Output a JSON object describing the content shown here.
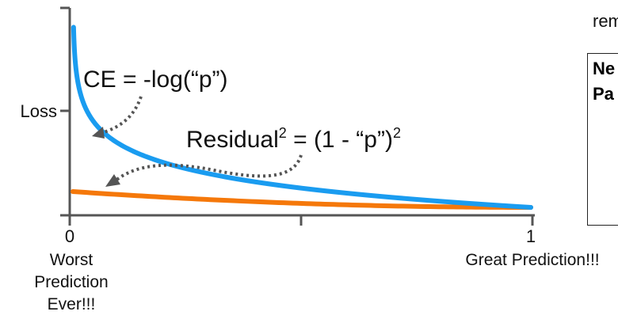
{
  "chart_data": {
    "type": "line",
    "xlabel_ticks": [
      "0",
      "1"
    ],
    "x_tick_captions": {
      "left": [
        "Worst",
        "Prediction",
        "Ever!!!"
      ],
      "right": "Great Prediction!!!"
    },
    "ylabel": "Loss",
    "xlim": [
      0,
      1
    ],
    "grid": false,
    "series": [
      {
        "label_text": "CE = -log(“p”)",
        "color": "#1a9cf0",
        "formula": "-log(p)",
        "x": [
          0.0015,
          0.005,
          0.01,
          0.02,
          0.05,
          0.1,
          0.2,
          0.3,
          0.5,
          0.7,
          1.0
        ],
        "y": [
          6.5,
          5.3,
          4.6,
          3.9,
          3.0,
          2.3,
          1.6,
          1.2,
          0.69,
          0.36,
          0.0
        ]
      },
      {
        "label_text_main": "Residual",
        "label_text_sup": "2",
        "label_text_rest": " = (1 - “p”)",
        "label_text_sup2": "2",
        "color": "#f5780a",
        "formula": "(1-p)^2",
        "x": [
          0.0,
          0.2,
          0.4,
          0.6,
          0.8,
          1.0
        ],
        "y": [
          1.0,
          0.64,
          0.36,
          0.16,
          0.04,
          0.0
        ]
      }
    ]
  },
  "colors": {
    "axis": "#555555",
    "arrow": "#555555",
    "text": "#111111"
  },
  "side": {
    "top_text": "rem",
    "panel_line_1": "Ne",
    "panel_line_2": "Pa"
  }
}
